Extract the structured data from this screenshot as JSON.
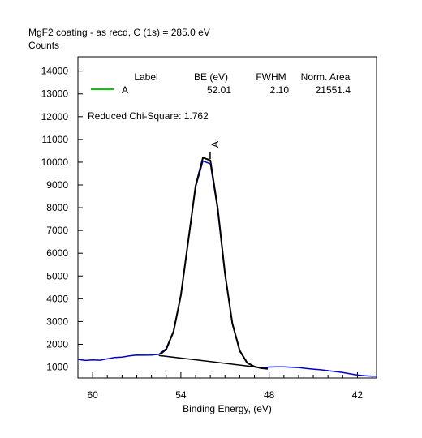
{
  "chart_data": {
    "type": "line",
    "title": "MgF2 coating - as recd, C (1s) = 285.0 eV",
    "ylabel": "Counts",
    "xlabel": "Binding Energy, (eV)",
    "xlim": [
      61.0,
      40.7
    ],
    "ylim": [
      520,
      14630
    ],
    "x_ticks": [
      60,
      54,
      48,
      42
    ],
    "y_ticks": [
      1000,
      2000,
      3000,
      4000,
      5000,
      6000,
      7000,
      8000,
      9000,
      10000,
      11000,
      12000,
      13000,
      14000
    ],
    "x_minor_ticks": [
      59,
      58,
      57,
      56,
      55,
      53,
      52,
      51,
      50,
      49,
      47,
      46,
      45,
      44,
      43,
      41
    ],
    "legend": {
      "headers": [
        "Label",
        "BE (eV)",
        "FWHM",
        "Norm. Area"
      ],
      "rows": [
        {
          "label": "A",
          "be": "52.01",
          "fwhm": "2.10",
          "area": "21551.4",
          "color": "#00cc00"
        }
      ]
    },
    "annotation_stat": "Reduced Chi-Square: 1.762",
    "peak_marker": {
      "label": "A",
      "x": 52.01
    },
    "series": [
      {
        "color": "#0000cc",
        "x": [
          61.0,
          60.5,
          60.0,
          59.5,
          59.0,
          58.5,
          58.0,
          57.5,
          57.0,
          56.5,
          56.0,
          55.5,
          55.0,
          54.5,
          54.0,
          53.5,
          53.0,
          52.5,
          52.0,
          51.5,
          51.0,
          50.5,
          50.0,
          49.5,
          49.0,
          48.5,
          48.0,
          47.5,
          47.0,
          46.5,
          46.0,
          45.5,
          45.0,
          44.5,
          44.0,
          43.5,
          43.0,
          42.5,
          42.0,
          41.5,
          41.0,
          40.7
        ],
        "y": [
          1340,
          1290,
          1310,
          1300,
          1360,
          1420,
          1440,
          1490,
          1530,
          1520,
          1530,
          1560,
          1810,
          2580,
          4170,
          6540,
          8900,
          10050,
          9930,
          7920,
          5070,
          2900,
          1700,
          1180,
          1010,
          970,
          1000,
          1010,
          1010,
          990,
          980,
          940,
          910,
          880,
          840,
          800,
          760,
          700,
          650,
          620,
          600,
          600
        ]
      },
      {
        "color": "#000000",
        "x": [
          55.4,
          55.0,
          54.5,
          54.0,
          53.5,
          53.0,
          52.5,
          52.0,
          51.5,
          51.0,
          50.5,
          50.0,
          49.5,
          49.0,
          48.6,
          48.1
        ],
        "y": [
          1560,
          1780,
          2550,
          4150,
          6550,
          8950,
          10200,
          10080,
          8000,
          5100,
          2920,
          1720,
          1190,
          1020,
          960,
          920
        ]
      },
      {
        "color": "#000000",
        "x": [
          55.5,
          48.1
        ],
        "y": [
          1510,
          940
        ]
      }
    ]
  }
}
